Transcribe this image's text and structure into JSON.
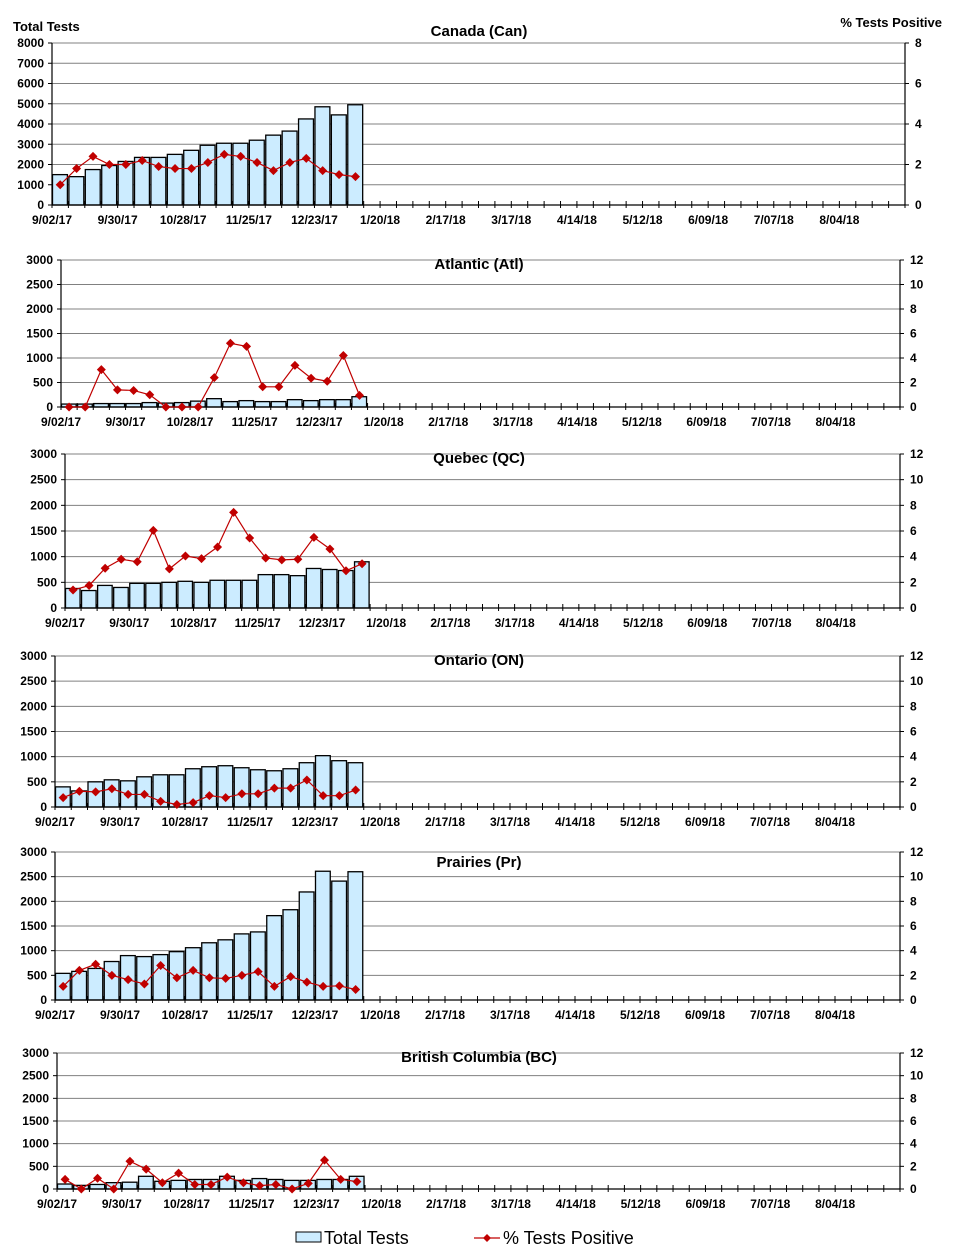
{
  "chart_data": {
    "type": "bar+line",
    "left_axis_title": "Total Tests",
    "right_axis_title": "% Tests Positive",
    "x_tick_labels": [
      "9/02/17",
      "9/30/17",
      "10/28/17",
      "11/25/17",
      "12/23/17",
      "1/20/18",
      "2/17/18",
      "3/17/18",
      "4/14/18",
      "5/12/18",
      "6/09/18",
      "7/07/18",
      "8/04/18"
    ],
    "weeks_total": 52,
    "grid": true,
    "legend": {
      "position": "bottom",
      "entries": [
        "Total Tests",
        "% Tests Positive"
      ]
    },
    "colors": {
      "bar_fill": "#CCECFF",
      "bar_stroke": "#000000",
      "line": "#C00000",
      "grid": "#808080"
    },
    "panels": [
      {
        "title": "Canada (Can)",
        "ylim_left": [
          0,
          8000
        ],
        "ylim_right": [
          0,
          8
        ],
        "total_tests": [
          1500,
          1400,
          1750,
          1950,
          2150,
          2350,
          2350,
          2500,
          2700,
          2950,
          3050,
          3050,
          3200,
          3450,
          3650,
          4250,
          4850,
          4450,
          4950
        ],
        "pct_positive": [
          1.0,
          1.8,
          2.4,
          2.0,
          2.0,
          2.2,
          1.9,
          1.8,
          1.8,
          2.1,
          2.5,
          2.4,
          2.1,
          1.7,
          2.1,
          2.3,
          1.7,
          1.5,
          1.4
        ]
      },
      {
        "title": "Atlantic (Atl)",
        "ylim_left": [
          0,
          3000
        ],
        "ylim_right": [
          0,
          12
        ],
        "total_tests": [
          60,
          60,
          70,
          70,
          70,
          90,
          80,
          90,
          120,
          170,
          110,
          130,
          110,
          110,
          150,
          130,
          150,
          150,
          210
        ],
        "pct_positive": [
          0,
          0,
          3.05,
          1.4,
          1.35,
          1.0,
          0,
          0,
          0,
          2.4,
          5.2,
          4.95,
          1.65,
          1.65,
          3.4,
          2.35,
          2.1,
          4.2,
          0.95
        ]
      },
      {
        "title": "Quebec (QC)",
        "ylim_left": [
          0,
          3000
        ],
        "ylim_right": [
          0,
          12
        ],
        "total_tests": [
          380,
          340,
          440,
          400,
          480,
          480,
          500,
          520,
          500,
          540,
          540,
          540,
          650,
          650,
          630,
          770,
          750,
          730,
          900
        ],
        "pct_positive": [
          1.4,
          1.75,
          3.1,
          3.8,
          3.6,
          6.05,
          3.05,
          4.05,
          3.85,
          4.75,
          7.45,
          5.45,
          3.9,
          3.75,
          3.8,
          5.5,
          4.6,
          2.9,
          3.45
        ]
      },
      {
        "title": "Ontario (ON)",
        "ylim_left": [
          0,
          3000
        ],
        "ylim_right": [
          0,
          12
        ],
        "total_tests": [
          400,
          320,
          500,
          540,
          520,
          600,
          640,
          640,
          760,
          800,
          820,
          780,
          740,
          720,
          760,
          880,
          1020,
          920,
          880
        ],
        "pct_positive": [
          0.75,
          1.25,
          1.2,
          1.45,
          1.0,
          1.0,
          0.45,
          0.2,
          0.35,
          0.9,
          0.75,
          1.05,
          1.05,
          1.5,
          1.5,
          2.15,
          0.9,
          0.9,
          1.35
        ]
      },
      {
        "title": "Prairies (Pr)",
        "ylim_left": [
          0,
          3000
        ],
        "ylim_right": [
          0,
          12
        ],
        "total_tests": [
          540,
          580,
          640,
          780,
          900,
          880,
          920,
          980,
          1060,
          1160,
          1220,
          1340,
          1380,
          1710,
          1830,
          2190,
          2610,
          2410,
          2600
        ],
        "pct_positive": [
          1.1,
          2.4,
          2.9,
          2.0,
          1.65,
          1.3,
          2.8,
          1.8,
          2.4,
          1.8,
          1.75,
          2.0,
          2.3,
          1.1,
          1.9,
          1.45,
          1.1,
          1.15,
          0.85
        ]
      },
      {
        "title": "British Columbia (BC)",
        "ylim_left": [
          0,
          3000
        ],
        "ylim_right": [
          0,
          12
        ],
        "total_tests": [
          110,
          80,
          100,
          140,
          150,
          280,
          170,
          190,
          210,
          210,
          280,
          190,
          230,
          210,
          190,
          190,
          210,
          210,
          280
        ],
        "pct_positive": [
          0.85,
          0,
          0.95,
          0,
          2.45,
          1.75,
          0.55,
          1.4,
          0.4,
          0.4,
          1.05,
          0.55,
          0.3,
          0.4,
          0,
          0.5,
          2.55,
          0.85,
          0.65
        ]
      }
    ]
  }
}
